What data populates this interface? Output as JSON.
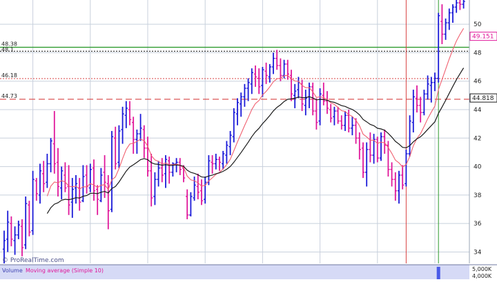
{
  "watermark": "© ProRealTime.com",
  "volume_panel": {
    "label": "Volume",
    "ma_label": "Moving average (Simple 10)",
    "axis_labels": [
      "5,000K",
      "4,000K"
    ],
    "bar_value_k": 4300,
    "ylim_k": [
      0,
      5000
    ]
  },
  "colors": {
    "up": "#1a1ad8",
    "down": "#e0179a",
    "ma_fast": "#f06070",
    "ma_slow": "#1a1a1a",
    "level_green": "#2e9a2e",
    "level_dash": "#222222",
    "level_red": "#d84040",
    "grid": "#c8d0dc",
    "vol_bar": "#4a5ae8",
    "vol_band": "#d6daf6"
  },
  "chart_data": {
    "type": "candlestick-bar",
    "ylim": [
      33.2,
      51.7
    ],
    "y_ticks": [
      34,
      36,
      38,
      40,
      42,
      44,
      46,
      48,
      50
    ],
    "grid": true,
    "left_level_labels": [
      "48.38",
      "48.1",
      "46.18",
      "44.73"
    ],
    "right_badges": [
      {
        "text": "49.151",
        "color": "#e0179a",
        "value": 49.151
      },
      {
        "text": "44.818",
        "color": "#1a1a1a",
        "value": 44.818
      }
    ],
    "levels": [
      {
        "value": 48.38,
        "style": "green"
      },
      {
        "value": 48.1,
        "style": "dash"
      },
      {
        "value": 46.18,
        "style": "red-dot"
      },
      {
        "value": 44.73,
        "style": "red-dash"
      }
    ],
    "vertical_markers": [
      {
        "bar_index": 112,
        "color": "#d84040"
      },
      {
        "bar_index": 121,
        "color": "#2e9a2e"
      }
    ],
    "bars": [
      [
        34.2,
        35.5,
        33.2,
        34.8
      ],
      [
        34.9,
        36.9,
        34.0,
        36.1
      ],
      [
        36.0,
        36.5,
        34.4,
        34.9
      ],
      [
        34.8,
        35.8,
        33.8,
        35.2
      ],
      [
        35.2,
        36.2,
        34.9,
        35.9
      ],
      [
        35.8,
        36.3,
        33.7,
        34.3
      ],
      [
        34.5,
        37.9,
        34.2,
        37.4
      ],
      [
        37.3,
        37.6,
        35.1,
        35.4
      ],
      [
        35.5,
        39.7,
        35.2,
        39.1
      ],
      [
        39.0,
        39.2,
        37.6,
        38.1
      ],
      [
        38.0,
        40.2,
        37.4,
        39.7
      ],
      [
        39.5,
        40.4,
        38.2,
        38.8
      ],
      [
        38.9,
        40.9,
        38.5,
        40.2
      ],
      [
        40.2,
        42.0,
        39.6,
        41.8
      ],
      [
        41.6,
        43.9,
        39.5,
        40.2
      ],
      [
        40.3,
        41.3,
        37.9,
        38.6
      ],
      [
        38.5,
        40.0,
        37.7,
        39.7
      ],
      [
        39.4,
        40.3,
        38.2,
        38.5
      ],
      [
        38.6,
        40.1,
        36.6,
        37.3
      ],
      [
        37.5,
        39.2,
        36.4,
        38.4
      ],
      [
        38.5,
        39.4,
        37.4,
        38.8
      ],
      [
        38.5,
        39.2,
        36.9,
        37.5
      ],
      [
        37.6,
        40.1,
        37.5,
        39.3
      ],
      [
        39.4,
        40.1,
        38.1,
        38.6
      ],
      [
        38.5,
        40.2,
        38.2,
        39.8
      ],
      [
        39.9,
        40.5,
        37.6,
        38.3
      ],
      [
        38.4,
        38.7,
        36.6,
        37.7
      ],
      [
        37.6,
        39.9,
        37.5,
        39.4
      ],
      [
        39.6,
        40.8,
        37.8,
        38.9
      ],
      [
        38.8,
        39.4,
        35.6,
        36.9
      ],
      [
        37.0,
        42.5,
        36.8,
        42.1
      ],
      [
        42.0,
        42.8,
        39.8,
        40.2
      ],
      [
        40.3,
        42.9,
        39.9,
        42.5
      ],
      [
        42.6,
        44.2,
        41.6,
        43.7
      ],
      [
        43.6,
        44.6,
        42.7,
        44.1
      ],
      [
        44.0,
        44.6,
        42.9,
        43.3
      ],
      [
        43.1,
        43.5,
        40.9,
        41.9
      ],
      [
        41.9,
        42.6,
        40.9,
        42.3
      ],
      [
        42.3,
        43.7,
        41.8,
        42.7
      ],
      [
        42.6,
        42.9,
        40.6,
        41.3
      ],
      [
        41.3,
        42.1,
        39.3,
        39.7
      ],
      [
        39.7,
        40.9,
        37.2,
        37.8
      ],
      [
        37.9,
        39.6,
        37.3,
        39.1
      ],
      [
        39.1,
        40.4,
        38.6,
        39.9
      ],
      [
        39.9,
        40.6,
        38.9,
        39.4
      ],
      [
        39.5,
        40.8,
        38.5,
        40.5
      ],
      [
        40.4,
        40.7,
        38.8,
        39.6
      ],
      [
        39.6,
        40.3,
        39.3,
        40.2
      ],
      [
        40.2,
        40.6,
        39.6,
        40.3
      ],
      [
        40.3,
        40.6,
        39.4,
        39.8
      ],
      [
        39.9,
        40.1,
        38.9,
        39.2
      ],
      [
        37.9,
        38.4,
        36.3,
        36.6
      ],
      [
        36.6,
        38.2,
        36.5,
        37.9
      ],
      [
        37.8,
        39.3,
        37.6,
        38.7
      ],
      [
        38.6,
        39.5,
        37.7,
        38.2
      ],
      [
        38.3,
        39.1,
        37.3,
        37.6
      ],
      [
        37.7,
        39.3,
        37.4,
        38.9
      ],
      [
        38.9,
        40.8,
        38.7,
        40.4
      ],
      [
        40.3,
        40.8,
        39.5,
        40.2
      ],
      [
        40.2,
        40.9,
        39.8,
        40.5
      ],
      [
        40.5,
        40.7,
        39.7,
        40.3
      ],
      [
        40.2,
        41.1,
        39.8,
        40.9
      ],
      [
        40.8,
        41.8,
        40.2,
        41.5
      ],
      [
        41.4,
        42.5,
        40.8,
        42.2
      ],
      [
        42.1,
        44.1,
        41.7,
        43.8
      ],
      [
        43.7,
        44.8,
        42.9,
        44.5
      ],
      [
        44.4,
        45.2,
        43.5,
        44.9
      ],
      [
        44.9,
        45.8,
        44.2,
        45.5
      ],
      [
        45.5,
        46.2,
        44.6,
        45.9
      ],
      [
        45.8,
        46.9,
        45.1,
        46.6
      ],
      [
        46.5,
        47.1,
        45.6,
        46.3
      ],
      [
        46.2,
        46.9,
        45.1,
        45.6
      ],
      [
        45.7,
        47.0,
        44.9,
        46.8
      ],
      [
        46.7,
        47.3,
        45.8,
        46.4
      ],
      [
        46.3,
        47.2,
        45.9,
        47.0
      ],
      [
        47.0,
        48.0,
        46.5,
        47.6
      ],
      [
        47.6,
        48.2,
        46.8,
        47.1
      ],
      [
        47.1,
        47.6,
        46.0,
        46.4
      ],
      [
        46.4,
        47.5,
        46.2,
        47.2
      ],
      [
        47.2,
        47.5,
        46.1,
        46.5
      ],
      [
        46.4,
        46.8,
        44.6,
        45.1
      ],
      [
        45.0,
        45.8,
        44.1,
        45.3
      ],
      [
        45.4,
        46.3,
        44.8,
        45.9
      ],
      [
        45.8,
        46.1,
        43.9,
        44.4
      ],
      [
        44.3,
        45.4,
        43.6,
        44.8
      ],
      [
        44.9,
        45.9,
        44.1,
        45.6
      ],
      [
        45.6,
        45.9,
        43.6,
        43.9
      ],
      [
        43.9,
        44.8,
        42.6,
        43.1
      ],
      [
        43.2,
        45.5,
        42.9,
        45.1
      ],
      [
        45.0,
        45.9,
        44.3,
        44.6
      ],
      [
        44.6,
        45.3,
        43.7,
        44.1
      ],
      [
        44.0,
        44.4,
        43.1,
        43.4
      ],
      [
        43.5,
        44.2,
        42.9,
        43.9
      ],
      [
        43.9,
        44.2,
        43.0,
        43.2
      ],
      [
        43.2,
        43.6,
        42.6,
        42.9
      ],
      [
        42.9,
        43.9,
        42.5,
        43.6
      ],
      [
        43.6,
        44.0,
        42.4,
        42.7
      ],
      [
        42.7,
        43.5,
        42.2,
        42.9
      ],
      [
        42.9,
        43.4,
        41.6,
        42.0
      ],
      [
        42.0,
        42.4,
        40.5,
        41.2
      ],
      [
        41.3,
        41.7,
        39.2,
        39.6
      ],
      [
        39.6,
        41.7,
        38.6,
        41.2
      ],
      [
        41.2,
        42.4,
        40.3,
        40.8
      ],
      [
        40.8,
        42.3,
        40.2,
        41.9
      ],
      [
        41.9,
        42.1,
        40.3,
        40.6
      ],
      [
        40.6,
        42.4,
        40.4,
        42.1
      ],
      [
        42.1,
        42.6,
        40.9,
        41.5
      ],
      [
        41.5,
        41.8,
        39.3,
        39.8
      ],
      [
        39.8,
        40.3,
        38.6,
        39.1
      ],
      [
        39.1,
        39.6,
        37.6,
        38.3
      ],
      [
        38.3,
        39.7,
        37.4,
        39.4
      ],
      [
        39.4,
        40.1,
        38.4,
        38.7
      ],
      [
        38.8,
        41.2,
        38.6,
        40.9
      ],
      [
        40.9,
        43.6,
        40.7,
        43.2
      ],
      [
        43.1,
        45.4,
        42.4,
        44.9
      ],
      [
        44.8,
        45.7,
        43.8,
        44.3
      ],
      [
        44.3,
        44.9,
        43.1,
        43.8
      ],
      [
        43.8,
        45.4,
        43.6,
        45.1
      ],
      [
        45.1,
        46.4,
        44.7,
        45.8
      ],
      [
        45.7,
        46.3,
        44.5,
        45.9
      ],
      [
        45.9,
        46.6,
        45.3,
        46.2
      ],
      [
        46.2,
        50.8,
        45.9,
        50.6
      ],
      [
        50.2,
        51.4,
        48.6,
        49.3
      ],
      [
        49.3,
        50.4,
        48.9,
        50.1
      ],
      [
        50.1,
        51.1,
        49.6,
        50.8
      ],
      [
        50.8,
        51.4,
        50.1,
        51.2
      ],
      [
        51.2,
        51.7,
        50.8,
        51.5
      ],
      [
        51.5,
        51.7,
        51.0,
        51.4
      ],
      [
        51.4,
        51.7,
        51.1,
        51.6
      ]
    ],
    "series": [
      {
        "name": "Moving average (Simple 10)",
        "color": "#f06070",
        "start": 12,
        "smoothing": 10
      },
      {
        "color": "#1a1a1a",
        "start": 12,
        "smoothing": 24
      }
    ]
  }
}
